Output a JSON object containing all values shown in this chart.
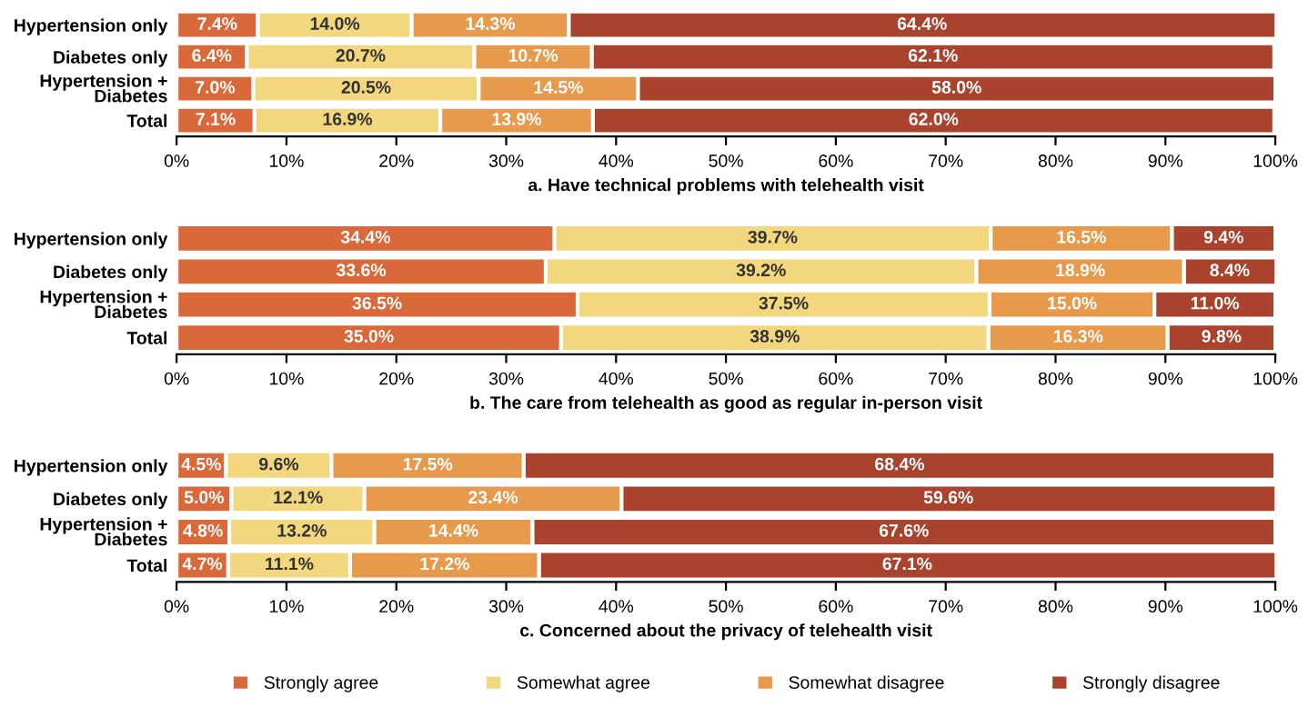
{
  "chart_data": [
    {
      "type": "bar",
      "orientation": "horizontal",
      "stacked": true,
      "title": "a. Have technical problems with telehealth visit",
      "categories": [
        "Hypertension only",
        "Diabetes only",
        "Hypertension +\nDiabetes",
        "Total"
      ],
      "xlim": [
        0,
        100
      ],
      "xticks": [
        {
          "value": 0,
          "label": "0%"
        },
        {
          "value": 10,
          "label": "10%"
        },
        {
          "value": 20,
          "label": "20%"
        },
        {
          "value": 30,
          "label": "30%"
        },
        {
          "value": 40,
          "label": "40%"
        },
        {
          "value": 50,
          "label": "50%"
        },
        {
          "value": 60,
          "label": "60%"
        },
        {
          "value": 70,
          "label": "70%"
        },
        {
          "value": 80,
          "label": "80%"
        },
        {
          "value": 90,
          "label": "90%"
        },
        {
          "value": 100,
          "label": "100%"
        }
      ],
      "legend": false,
      "series": [
        {
          "color": "#d9693a",
          "values": [
            7.4,
            6.4,
            7.0,
            7.1
          ],
          "value_labels": [
            "7.4%",
            "6.4%",
            "7.0%",
            "7.1%"
          ]
        },
        {
          "color": "#f2d77e",
          "values": [
            14.0,
            20.7,
            20.5,
            16.9
          ],
          "value_labels": [
            "14.0%",
            "20.7%",
            "20.5%",
            "16.9%"
          ]
        },
        {
          "color": "#e89a4c",
          "values": [
            14.3,
            10.7,
            14.5,
            13.9
          ],
          "value_labels": [
            "14.3%",
            "10.7%",
            "14.5%",
            "13.9%"
          ]
        },
        {
          "color": "#a9432e",
          "values": [
            64.4,
            62.1,
            58.0,
            62.0
          ],
          "value_labels": [
            "64.4%",
            "62.1%",
            "58.0%",
            "62.0%"
          ]
        }
      ]
    },
    {
      "type": "bar",
      "orientation": "horizontal",
      "stacked": true,
      "title": "b. The care from telehealth as good as regular in-person visit",
      "categories": [
        "Hypertension only",
        "Diabetes only",
        "Hypertension +\nDiabetes",
        "Total"
      ],
      "xlim": [
        0,
        100
      ],
      "xticks": [
        {
          "value": 0,
          "label": "0%"
        },
        {
          "value": 10,
          "label": "10%"
        },
        {
          "value": 20,
          "label": "20%"
        },
        {
          "value": 30,
          "label": "30%"
        },
        {
          "value": 40,
          "label": "40%"
        },
        {
          "value": 50,
          "label": "50%"
        },
        {
          "value": 60,
          "label": "60%"
        },
        {
          "value": 70,
          "label": "70%"
        },
        {
          "value": 80,
          "label": "80%"
        },
        {
          "value": 90,
          "label": "90%"
        },
        {
          "value": 100,
          "label": "100%"
        }
      ],
      "legend": false,
      "series": [
        {
          "color": "#d9693a",
          "values": [
            34.4,
            33.6,
            36.5,
            35.0
          ],
          "value_labels": [
            "34.4%",
            "33.6%",
            "36.5%",
            "35.0%"
          ]
        },
        {
          "color": "#f2d77e",
          "values": [
            39.7,
            39.2,
            37.5,
            38.9
          ],
          "value_labels": [
            "39.7%",
            "39.2%",
            "37.5%",
            "38.9%"
          ]
        },
        {
          "color": "#e89a4c",
          "values": [
            16.5,
            18.9,
            15.0,
            16.3
          ],
          "value_labels": [
            "16.5%",
            "18.9%",
            "15.0%",
            "16.3%"
          ]
        },
        {
          "color": "#a9432e",
          "values": [
            9.4,
            8.4,
            11.0,
            9.8
          ],
          "value_labels": [
            "9.4%",
            "8.4%",
            "11.0%",
            "9.8%"
          ]
        }
      ]
    },
    {
      "type": "bar",
      "orientation": "horizontal",
      "stacked": true,
      "title": "c. Concerned about the privacy of telehealth visit",
      "categories": [
        "Hypertension only",
        "Diabetes only",
        "Hypertension +\nDiabetes",
        "Total"
      ],
      "xlim": [
        0,
        100
      ],
      "xticks": [
        {
          "value": 0,
          "label": "0%"
        },
        {
          "value": 10,
          "label": "10%"
        },
        {
          "value": 20,
          "label": "20%"
        },
        {
          "value": 30,
          "label": "30%"
        },
        {
          "value": 40,
          "label": "40%"
        },
        {
          "value": 50,
          "label": "50%"
        },
        {
          "value": 60,
          "label": "60%"
        },
        {
          "value": 70,
          "label": "70%"
        },
        {
          "value": 80,
          "label": "80%"
        },
        {
          "value": 90,
          "label": "90%"
        },
        {
          "value": 100,
          "label": "100%"
        }
      ],
      "legend": "bottom",
      "series": [
        {
          "name": "Strongly agree",
          "color": "#d9693a",
          "values": [
            4.5,
            5.0,
            4.8,
            4.7
          ],
          "value_labels": [
            "4.5%",
            "5.0%",
            "4.8%",
            "4.7%"
          ]
        },
        {
          "name": "Somewhat agree",
          "color": "#f2d77e",
          "values": [
            9.6,
            12.1,
            13.2,
            11.1
          ],
          "value_labels": [
            "9.6%",
            "12.1%",
            "13.2%",
            "11.1%"
          ]
        },
        {
          "name": "Somewhat disagree",
          "color": "#e89a4c",
          "values": [
            17.5,
            23.4,
            14.4,
            17.2
          ],
          "value_labels": [
            "17.5%",
            "23.4%",
            "14.4%",
            "17.2%"
          ]
        },
        {
          "name": "Strongly disagree",
          "color": "#a9432e",
          "values": [
            68.4,
            59.6,
            67.6,
            67.1
          ],
          "value_labels": [
            "68.4%",
            "59.6%",
            "67.6%",
            "67.1%"
          ]
        }
      ]
    }
  ]
}
